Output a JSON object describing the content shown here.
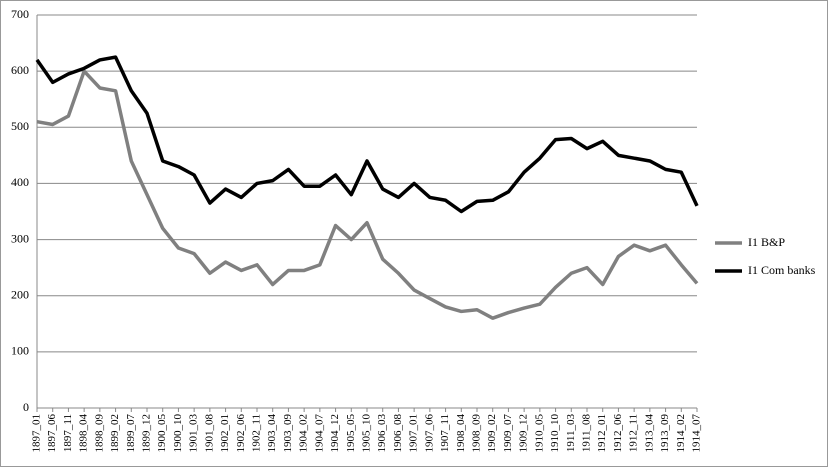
{
  "chart_data": {
    "type": "line",
    "categories": [
      "1897_01",
      "1897_06",
      "1897_11",
      "1898_04",
      "1898_09",
      "1899_02",
      "1899_07",
      "1899_12",
      "1900_05",
      "1900_10",
      "1901_03",
      "1901_08",
      "1902_01",
      "1902_06",
      "1902_11",
      "1903_04",
      "1903_09",
      "1904_02",
      "1904_07",
      "1904_12",
      "1905_05",
      "1905_10",
      "1906_03",
      "1906_08",
      "1907_01",
      "1907_06",
      "1907_11",
      "1908_04",
      "1908_09",
      "1909_02",
      "1909_07",
      "1909_12",
      "1910_05",
      "1910_10",
      "1911_03",
      "1911_08",
      "1912_01",
      "1912_06",
      "1912_11",
      "1913_04",
      "1913_09",
      "1914_02",
      "1914_07"
    ],
    "series": [
      {
        "name": "I1 B&P",
        "color": "#808080",
        "values": [
          510,
          505,
          520,
          600,
          570,
          565,
          440,
          380,
          320,
          285,
          275,
          240,
          260,
          245,
          255,
          220,
          245,
          245,
          255,
          325,
          300,
          330,
          265,
          240,
          210,
          195,
          180,
          172,
          175,
          160,
          170,
          178,
          185,
          215,
          240,
          250,
          220,
          270,
          290,
          280,
          290,
          255,
          222
        ]
      },
      {
        "name": "I1 Com banks",
        "color": "#000000",
        "values": [
          620,
          580,
          595,
          605,
          620,
          625,
          565,
          525,
          440,
          430,
          415,
          365,
          390,
          375,
          400,
          405,
          425,
          395,
          395,
          415,
          380,
          440,
          390,
          375,
          400,
          375,
          370,
          350,
          368,
          370,
          385,
          420,
          445,
          478,
          480,
          462,
          475,
          450,
          445,
          440,
          425,
          420,
          360
        ]
      }
    ],
    "ylim": [
      0,
      700
    ],
    "yticks": [
      0,
      100,
      200,
      300,
      400,
      500,
      600,
      700
    ],
    "grid": true,
    "legend": "right"
  }
}
